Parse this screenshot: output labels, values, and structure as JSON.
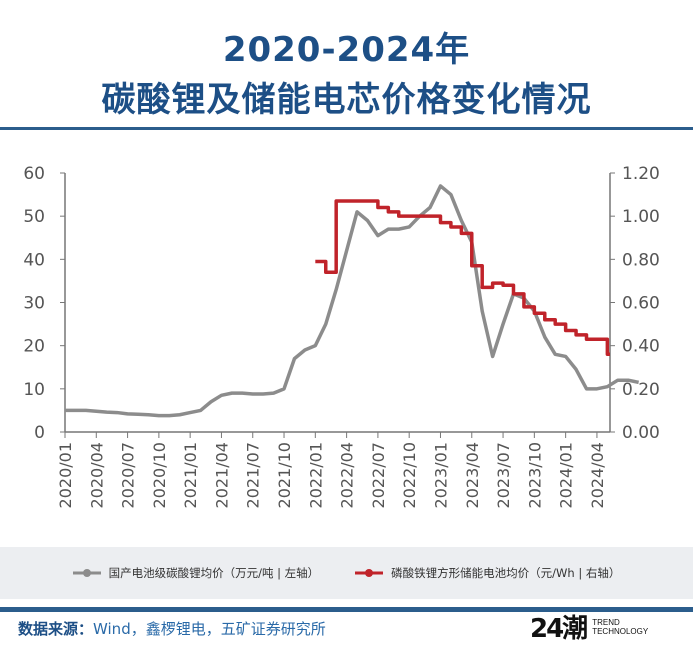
{
  "title": {
    "line1": "2020-2024年",
    "line2": "碳酸锂及储能电芯价格变化情况"
  },
  "source": {
    "label": "数据来源：",
    "text": "Wind，鑫椤锂电，五矿证券研究所"
  },
  "logo": {
    "mark": "24潮",
    "line1": "TREND",
    "line2": "TECHNOLOGY"
  },
  "chart_data": {
    "type": "line",
    "x_ticks": [
      "2020/01",
      "2020/04",
      "2020/07",
      "2020/10",
      "2021/01",
      "2021/04",
      "2021/07",
      "2021/10",
      "2022/01",
      "2022/04",
      "2022/07",
      "2022/10",
      "2023/01",
      "2023/04",
      "2023/07",
      "2023/10",
      "2024/01",
      "2024/04"
    ],
    "left_axis": {
      "ylim": [
        0,
        60
      ],
      "ticks": [
        "0",
        "10",
        "20",
        "30",
        "40",
        "50",
        "60"
      ]
    },
    "right_axis": {
      "ylim": [
        0,
        1.2
      ],
      "ticks": [
        "0.00",
        "0.20",
        "0.40",
        "0.60",
        "0.80",
        "1.00",
        "1.20"
      ]
    },
    "series": [
      {
        "name": "国产电池级碳酸锂均价（万元/吨 | 左轴）",
        "axis": "left",
        "color": "#8c8c8c",
        "start": "2020/01",
        "values": [
          5,
          5,
          5,
          4.8,
          4.6,
          4.5,
          4.2,
          4.1,
          4,
          3.8,
          3.8,
          4,
          4.5,
          5,
          7,
          8.5,
          9,
          9,
          8.8,
          8.8,
          9,
          10,
          17,
          19,
          20,
          25,
          33,
          42,
          51,
          49,
          45.5,
          47,
          47,
          47.5,
          50,
          52,
          57,
          55,
          49,
          44,
          28,
          17.5,
          25,
          32,
          31,
          28,
          22,
          18,
          17.5,
          14.5,
          10,
          10,
          10.5,
          12,
          12,
          11.5
        ]
      },
      {
        "name": "磷酸铁锂方形储能电池均价（元/Wh | 右轴）",
        "axis": "right",
        "color": "#c0232a",
        "start": "2022/01",
        "step": true,
        "values": [
          0.79,
          0.74,
          1.07,
          1.07,
          1.07,
          1.07,
          1.04,
          1.02,
          1.0,
          1.0,
          1.0,
          1.0,
          0.97,
          0.95,
          0.92,
          0.77,
          0.67,
          0.69,
          0.68,
          0.64,
          0.58,
          0.55,
          0.52,
          0.5,
          0.47,
          0.45,
          0.43,
          0.43,
          0.36
        ]
      }
    ],
    "legend": "bottom"
  }
}
